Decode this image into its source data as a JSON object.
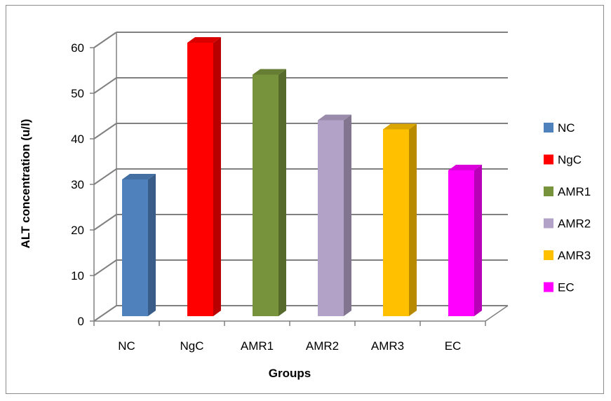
{
  "chart_data": {
    "type": "bar",
    "style": "3d-column",
    "categories": [
      "NC",
      "NgC",
      "AMR1",
      "AMR2",
      "AMR3",
      "EC"
    ],
    "values": [
      30,
      60,
      53,
      43,
      41,
      32
    ],
    "colors": [
      "#4f81bd",
      "#ff0000",
      "#77933c",
      "#b3a2c7",
      "#ffc000",
      "#ff00ff"
    ],
    "xlabel": "Groups",
    "ylabel": "ALT concentration (u/l)",
    "ylim": [
      0,
      60
    ],
    "yticks": [
      0,
      10,
      20,
      30,
      40,
      50,
      60
    ],
    "grid": true,
    "legend": {
      "position": "right",
      "entries": [
        "NC",
        "NgC",
        "AMR1",
        "AMR2",
        "AMR3",
        "EC"
      ]
    }
  }
}
